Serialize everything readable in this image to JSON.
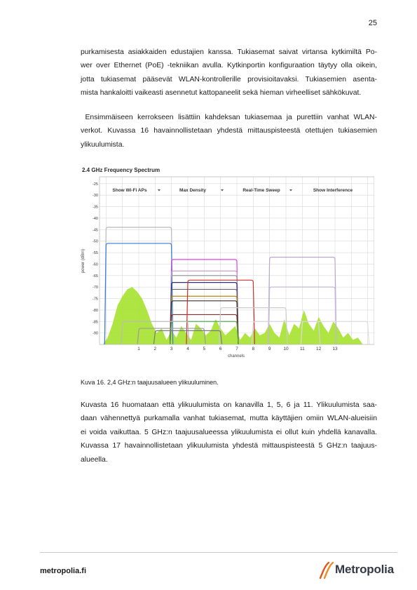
{
  "page_number": "25",
  "paragraphs": {
    "p1": [
      "purkamisesta asiakkaiden edustajien kanssa. Tukiasemat saivat virtansa kytkimiltä Po-",
      "wer over Ethernet (PoE) -tekniikan avulla. Kytkinportin konfiguraation täytyy olla oikein,",
      "jotta tukiasemat pääsevät WLAN-kontrollerille provisioitavaksi. Tukiasemien asenta-",
      "mista hankaloitti vaikeasti asennetut kattopaneelit sekä hieman virheelliset sähkökuvat."
    ],
    "p2": [
      " Ensimmäiseen kerrokseen lisättiin kahdeksan tukiasemaa ja purettiin vanhat WLAN-",
      "verkot. Kuvassa 16 havainnollistetaan yhdestä mittauspisteestä otettujen tukiasemien",
      "ylikuulumista."
    ],
    "p3": [
      "Kuvasta 16 huomataan että ylikuulumista on kanavilla 1, 5, 6 ja 11. Ylikuulumista saa-",
      "daan vähennettyä purkamalla vanhat tukiasemat, mutta käyttäjien omiin WLAN-alueisiin",
      "ei voida vaikuttaa. 5 GHz:n taajuusalueessa ylikuulumista ei ollut kuin yhdellä kanavalla.",
      "Kuvassa 17 havainnollistetaan ylikuulumista yhdestä mittauspisteestä 5 GHz:n taajuus-",
      "alueella."
    ]
  },
  "caption": "Kuva 16. 2,4 GHz:n taajuusalueen ylikuuluminen.",
  "footer": {
    "site": "metropolia.fi",
    "logo_text": "Metropolia"
  },
  "chart_data": {
    "type": "area",
    "title": "2.4 GHz Frequency Spectrum",
    "xlabel": "channels",
    "ylabel": "power (dBm)",
    "x_ticks": [
      "1",
      "2",
      "3",
      "4",
      "5",
      "6",
      "7",
      "8",
      "9",
      "10",
      "11",
      "12",
      "13"
    ],
    "y_ticks": [
      "-25",
      "-30",
      "-35",
      "-40",
      "-45",
      "-50",
      "-55",
      "-60",
      "-65",
      "-70",
      "-75",
      "-80",
      "-85",
      "-90"
    ],
    "xlim": [
      -1.4,
      15.4
    ],
    "ylim": [
      -95,
      -22
    ],
    "toolbar": [
      "Show Wi-Fi APs",
      "Max Density",
      "Real-Time Sweep",
      "Show Interference"
    ],
    "grid": true,
    "colors": {
      "density_fill": "#a6e22e",
      "grid": "#d9d9d9",
      "axis": "#777777"
    },
    "ap_signals": [
      {
        "channel": 1,
        "power": -44,
        "color": "#b9b9b9"
      },
      {
        "channel": 1,
        "power": -51,
        "color": "#3a7bd5"
      },
      {
        "channel": 5,
        "power": -58,
        "color": "#e040e0"
      },
      {
        "channel": 5,
        "power": -63,
        "color": "#c9a0c9"
      },
      {
        "channel": 5,
        "power": -65,
        "color": "#9a9a9a"
      },
      {
        "channel": 5,
        "power": -68,
        "color": "#303070"
      },
      {
        "channel": 5,
        "power": -71,
        "color": "#666666"
      },
      {
        "channel": 5,
        "power": -74,
        "color": "#b8860b"
      },
      {
        "channel": 5,
        "power": -76,
        "color": "#333333"
      },
      {
        "channel": 5,
        "power": -82,
        "color": "#8b2e2e"
      },
      {
        "channel": 5,
        "power": -85,
        "color": "#4caf50"
      },
      {
        "channel": 6,
        "power": -67,
        "color": "#d03030"
      },
      {
        "channel": 11,
        "power": -57,
        "color": "#b9a8c9"
      },
      {
        "channel": 11,
        "power": -70,
        "color": "#c8b8d8"
      },
      {
        "channel": 8,
        "power": -79,
        "color": "#cccccc"
      },
      {
        "channel": 2,
        "power": -85,
        "color": "#bbbbbb"
      },
      {
        "channel": 13,
        "power": -85,
        "color": "#dddddd"
      },
      {
        "channel": 10,
        "power": -85,
        "color": "#d8d0e0"
      },
      {
        "channel": 3,
        "power": -88,
        "color": "#9c9c9c"
      },
      {
        "channel": 4,
        "power": -89,
        "color": "#7a7a7a"
      }
    ],
    "density": {
      "x": [
        -1.2,
        -0.9,
        -0.6,
        -0.3,
        0,
        0.3,
        0.6,
        0.9,
        1.2,
        1.5,
        1.8,
        2.1,
        2.4,
        2.7,
        3.0,
        3.3,
        3.6,
        3.9,
        4.2,
        4.5,
        4.8,
        5.1,
        5.4,
        5.7,
        6.0,
        6.3,
        6.6,
        6.9,
        7.2,
        7.5,
        7.8,
        8.1,
        8.4,
        8.7,
        9.0,
        9.3,
        9.6,
        9.9,
        10.2,
        10.5,
        10.8,
        11.1,
        11.4,
        11.7,
        12.0,
        12.3,
        12.6,
        12.9,
        13.2,
        13.5,
        13.8,
        14.1,
        14.4,
        14.7
      ],
      "y": [
        -95,
        -92,
        -86,
        -78,
        -74,
        -71,
        -70,
        -72,
        -75,
        -80,
        -86,
        -90,
        -88,
        -93,
        -89,
        -92,
        -87,
        -90,
        -93,
        -86,
        -88,
        -91,
        -89,
        -84,
        -88,
        -91,
        -89,
        -87,
        -93,
        -90,
        -92,
        -88,
        -91,
        -90,
        -86,
        -90,
        -92,
        -84,
        -91,
        -86,
        -88,
        -80,
        -86,
        -89,
        -83,
        -87,
        -90,
        -85,
        -88,
        -92,
        -90,
        -93,
        -92,
        -95
      ]
    }
  }
}
